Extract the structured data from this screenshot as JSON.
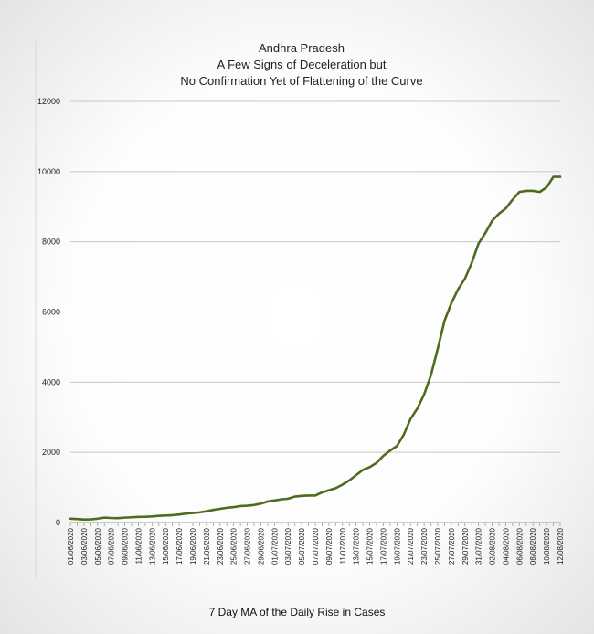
{
  "chart_data": {
    "type": "line",
    "title": [
      "Andhra Pradesh",
      "A Few Signs of Deceleration but",
      "No Confirmation Yet of Flattening of the Curve"
    ],
    "xlabel": "",
    "ylabel": "",
    "caption": "7 Day MA of the Daily Rise in Cases",
    "ylim": [
      0,
      12000
    ],
    "yticks": [
      "0",
      "2000",
      "4000",
      "6000",
      "8000",
      "10000",
      "12000"
    ],
    "xtick_labels": [
      "01/06/2020",
      "03/06/2020",
      "05/06/2020",
      "07/06/2020",
      "09/06/2020",
      "11/06/2020",
      "13/06/2020",
      "15/06/2020",
      "17/06/2020",
      "19/06/2020",
      "21/06/2020",
      "23/06/2020",
      "25/06/2020",
      "27/06/2020",
      "29/06/2020",
      "01/07/2020",
      "03/07/2020",
      "05/07/2020",
      "07/07/2020",
      "09/07/2020",
      "11/07/2020",
      "13/07/2020",
      "15/07/2020",
      "17/07/2020",
      "19/07/2020",
      "21/07/2020",
      "23/07/2020",
      "25/07/2020",
      "27/07/2020",
      "29/07/2020",
      "31/07/2020",
      "02/08/2020",
      "04/08/2020",
      "06/08/2020",
      "08/08/2020",
      "10/08/2020",
      "12/08/2020"
    ],
    "grid": true,
    "colors": {
      "line": "#4e6b1f",
      "grid": "#c8c8c8"
    },
    "series": [
      {
        "values": [
          110,
          100,
          85,
          90,
          110,
          140,
          130,
          125,
          140,
          150,
          160,
          165,
          175,
          190,
          200,
          210,
          230,
          255,
          270,
          290,
          320,
          360,
          390,
          420,
          440,
          470,
          480,
          500,
          540,
          600,
          630,
          660,
          680,
          740,
          760,
          770,
          770,
          860,
          920,
          980,
          1080,
          1200,
          1350,
          1500,
          1580,
          1700,
          1900,
          2050,
          2180,
          2500,
          2950,
          3250,
          3650,
          4200,
          4950,
          5750,
          6250,
          6650,
          6950,
          7400,
          7950,
          8250,
          8600,
          8800,
          8950,
          9200,
          9420,
          9450,
          9450,
          9420,
          9550,
          9850,
          9850
        ]
      }
    ]
  }
}
